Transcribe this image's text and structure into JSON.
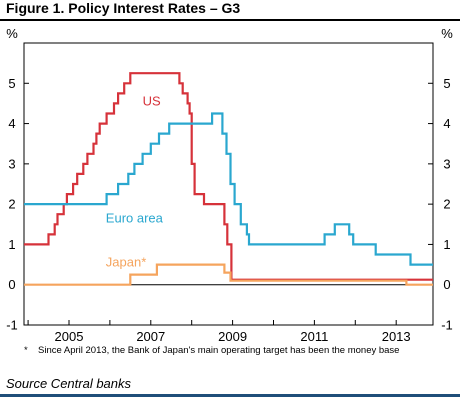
{
  "figure": {
    "title": "Figure 1. Policy Interest Rates – G3",
    "footnote_mark": "*",
    "footnote_text": "Since April 2013, the Bank of Japan's main operating target has been the money base",
    "source": "Source Central banks"
  },
  "chart_data": {
    "type": "line",
    "y_unit_left": "%",
    "y_unit_right": "%",
    "ylim": [
      -1,
      6
    ],
    "xlim": [
      2003.9,
      2013.9
    ],
    "yticks": [
      -1,
      0,
      1,
      2,
      3,
      4,
      5
    ],
    "xticks": [
      2005,
      2007,
      2009,
      2011,
      2013
    ],
    "grid": false,
    "series": [
      {
        "name": "US",
        "color": "#d6323a",
        "step": true,
        "points": [
          [
            2003.9,
            1.0
          ],
          [
            2004.5,
            1.25
          ],
          [
            2004.65,
            1.5
          ],
          [
            2004.72,
            1.75
          ],
          [
            2004.87,
            2.0
          ],
          [
            2004.95,
            2.25
          ],
          [
            2005.1,
            2.5
          ],
          [
            2005.2,
            2.75
          ],
          [
            2005.35,
            3.0
          ],
          [
            2005.45,
            3.25
          ],
          [
            2005.6,
            3.5
          ],
          [
            2005.67,
            3.75
          ],
          [
            2005.75,
            4.0
          ],
          [
            2005.92,
            4.25
          ],
          [
            2006.1,
            4.5
          ],
          [
            2006.2,
            4.75
          ],
          [
            2006.35,
            5.0
          ],
          [
            2006.5,
            5.25
          ],
          [
            2007.7,
            5.0
          ],
          [
            2007.78,
            4.75
          ],
          [
            2007.9,
            4.5
          ],
          [
            2007.95,
            4.25
          ],
          [
            2008.0,
            3.0
          ],
          [
            2008.07,
            2.25
          ],
          [
            2008.3,
            2.0
          ],
          [
            2008.8,
            1.5
          ],
          [
            2008.87,
            1.0
          ],
          [
            2008.97,
            0.125
          ],
          [
            2013.9,
            0.125
          ]
        ]
      },
      {
        "name": "Euro area",
        "color": "#2aa7cf",
        "step": true,
        "points": [
          [
            2003.9,
            2.0
          ],
          [
            2005.92,
            2.25
          ],
          [
            2006.2,
            2.5
          ],
          [
            2006.45,
            2.75
          ],
          [
            2006.6,
            3.0
          ],
          [
            2006.8,
            3.25
          ],
          [
            2007.0,
            3.5
          ],
          [
            2007.2,
            3.75
          ],
          [
            2007.45,
            4.0
          ],
          [
            2008.5,
            4.25
          ],
          [
            2008.75,
            3.75
          ],
          [
            2008.85,
            3.25
          ],
          [
            2008.95,
            2.5
          ],
          [
            2009.05,
            2.0
          ],
          [
            2009.2,
            1.5
          ],
          [
            2009.35,
            1.25
          ],
          [
            2009.4,
            1.0
          ],
          [
            2011.25,
            1.25
          ],
          [
            2011.5,
            1.5
          ],
          [
            2011.85,
            1.25
          ],
          [
            2011.95,
            1.0
          ],
          [
            2012.5,
            0.75
          ],
          [
            2013.35,
            0.5
          ],
          [
            2013.9,
            0.5
          ]
        ]
      },
      {
        "name": "Japan*",
        "color": "#f5a45d",
        "step": true,
        "points": [
          [
            2003.9,
            0.0
          ],
          [
            2006.5,
            0.25
          ],
          [
            2007.15,
            0.5
          ],
          [
            2008.8,
            0.3
          ],
          [
            2008.95,
            0.1
          ],
          [
            2013.25,
            0.0
          ],
          [
            2013.9,
            0.0
          ]
        ]
      }
    ],
    "series_labels": [
      {
        "text": "US",
        "color": "#d6323a",
        "x": 2006.8,
        "y": 4.45
      },
      {
        "text": "Euro area",
        "color": "#2aa7cf",
        "x": 2005.9,
        "y": 1.55
      },
      {
        "text": "Japan*",
        "color": "#f5a45d",
        "x": 2005.9,
        "y": 0.45
      }
    ]
  }
}
